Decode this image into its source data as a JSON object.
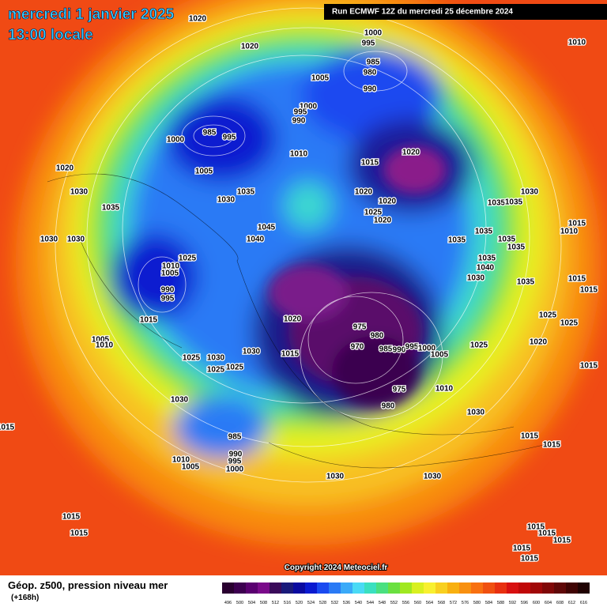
{
  "header": {
    "date": "mercredi 1 janvier 2025",
    "time": "13:00 locale",
    "run": "Run ECMWF 12Z du mercredi 25 décembre 2024"
  },
  "copyright": "Copyright 2024 Meteociel.fr",
  "legend": {
    "title": "Géop. z500, pression niveau mer",
    "lead": "(+168h)"
  },
  "scale": {
    "values": [
      496,
      500,
      504,
      508,
      512,
      516,
      520,
      524,
      528,
      532,
      536,
      540,
      544,
      548,
      552,
      556,
      560,
      564,
      568,
      572,
      576,
      580,
      584,
      588,
      592,
      596,
      600,
      604,
      608,
      612,
      616
    ],
    "colors": [
      "#2a0030",
      "#3d0050",
      "#5a0070",
      "#7a0a8a",
      "#3a0a5a",
      "#1a1a7a",
      "#0a0aa0",
      "#0a1ad0",
      "#1a4af0",
      "#2a7af5",
      "#3aaaf8",
      "#4adaf5",
      "#3ae0c0",
      "#4ae080",
      "#6ae040",
      "#a0e820",
      "#d8f020",
      "#f8f030",
      "#f8d020",
      "#f8b010",
      "#f89010",
      "#f87010",
      "#f05010",
      "#e83010",
      "#d81010",
      "#c00808",
      "#a00808",
      "#800808",
      "#600808",
      "#400404",
      "#200202"
    ]
  },
  "isobar_labels": [
    1020,
    1020,
    1000,
    995,
    985,
    980,
    1005,
    990,
    1010,
    1000,
    995,
    990,
    985,
    1000,
    995,
    1010,
    1015,
    1020,
    1020,
    1005,
    1035,
    1030,
    1020,
    1020,
    1025,
    1020,
    1030,
    1035,
    1035,
    1030,
    1035,
    1030,
    1030,
    1040,
    1045,
    1035,
    1035,
    1035,
    1035,
    1010,
    1015,
    1025,
    1010,
    1005,
    990,
    995,
    1035,
    1040,
    1030,
    1035,
    1015,
    1015,
    1020,
    1015,
    1025,
    1025,
    975,
    980,
    970,
    985,
    990,
    995,
    1000,
    1005,
    1025,
    1020,
    1015,
    1030,
    1005,
    1010,
    1025,
    1030,
    1025,
    1025,
    1015,
    975,
    980,
    1010,
    1030,
    1030,
    1015,
    985,
    990,
    995,
    1000,
    1010,
    1005,
    1015,
    1015,
    1030,
    1030,
    1015,
    1015,
    1015,
    1015,
    1015,
    1015,
    1015
  ]
}
